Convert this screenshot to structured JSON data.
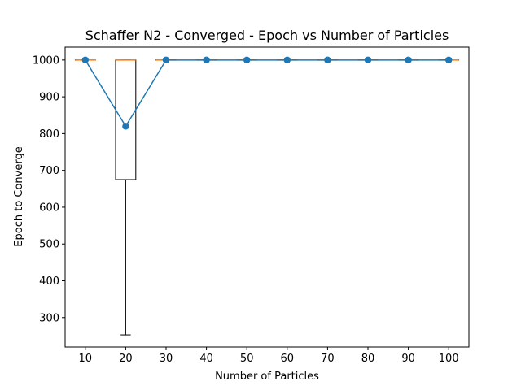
{
  "chart_data": {
    "type": "box",
    "title": "Schaffer N2 - Converged - Epoch vs Number of Particles",
    "xlabel": "Number of Particles",
    "ylabel": "Epoch to Converge",
    "categories": [
      "10",
      "20",
      "30",
      "40",
      "50",
      "60",
      "70",
      "80",
      "90",
      "100"
    ],
    "yticks": [
      "300",
      "400",
      "500",
      "600",
      "700",
      "800",
      "900",
      "1000"
    ],
    "ylim": [
      220,
      1035
    ],
    "boxes": [
      {
        "x": 10,
        "whislo": 1000,
        "q1": 1000,
        "med": 1000,
        "q3": 1000,
        "whishi": 1000
      },
      {
        "x": 20,
        "whislo": 253,
        "q1": 675,
        "med": 1000,
        "q3": 1000,
        "whishi": 1000
      },
      {
        "x": 30,
        "whislo": 1000,
        "q1": 1000,
        "med": 1000,
        "q3": 1000,
        "whishi": 1000
      },
      {
        "x": 40,
        "whislo": 1000,
        "q1": 1000,
        "med": 1000,
        "q3": 1000,
        "whishi": 1000
      },
      {
        "x": 50,
        "whislo": 1000,
        "q1": 1000,
        "med": 1000,
        "q3": 1000,
        "whishi": 1000
      },
      {
        "x": 60,
        "whislo": 1000,
        "q1": 1000,
        "med": 1000,
        "q3": 1000,
        "whishi": 1000
      },
      {
        "x": 70,
        "whislo": 1000,
        "q1": 1000,
        "med": 1000,
        "q3": 1000,
        "whishi": 1000
      },
      {
        "x": 80,
        "whislo": 1000,
        "q1": 1000,
        "med": 1000,
        "q3": 1000,
        "whishi": 1000
      },
      {
        "x": 90,
        "whislo": 1000,
        "q1": 1000,
        "med": 1000,
        "q3": 1000,
        "whishi": 1000
      },
      {
        "x": 100,
        "whislo": 1000,
        "q1": 1000,
        "med": 1000,
        "q3": 1000,
        "whishi": 1000
      }
    ],
    "series": [
      {
        "x": [
          10,
          20,
          30,
          40,
          50,
          60,
          70,
          80,
          90,
          100
        ],
        "values": [
          1000,
          820,
          1000,
          1000,
          1000,
          1000,
          1000,
          1000,
          1000,
          1000
        ],
        "color": "#1f77b4",
        "marker": "circle"
      }
    ],
    "median_color": "#ff7f0e",
    "box_color": "#000000",
    "grid": false,
    "legend": "none"
  }
}
